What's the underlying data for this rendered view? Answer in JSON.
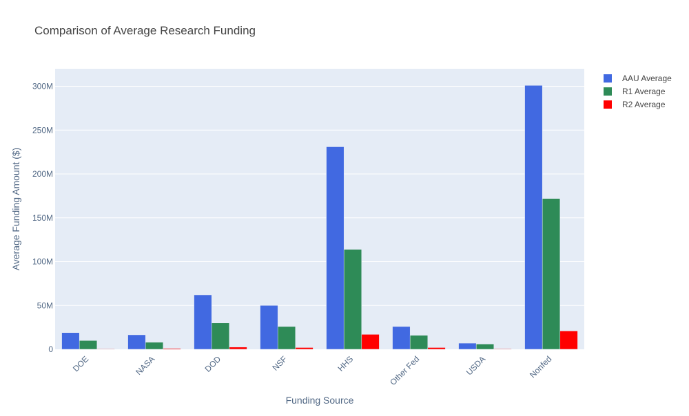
{
  "chart_data": {
    "type": "bar",
    "title": "Comparison of Average Research Funding",
    "xlabel": "Funding Source",
    "ylabel": "Average Funding Amount ($)",
    "categories": [
      "DOE",
      "NASA",
      "DOD",
      "NSF",
      "HHS",
      "Other Fed",
      "USDA",
      "Nonfed"
    ],
    "ylim": [
      0,
      320000000
    ],
    "yticks": [
      0,
      50000000,
      100000000,
      150000000,
      200000000,
      250000000,
      300000000
    ],
    "ytick_labels": [
      "0",
      "50M",
      "100M",
      "150M",
      "200M",
      "250M",
      "300M"
    ],
    "grid": true,
    "legend_position": "top-right",
    "series": [
      {
        "name": "AAU Average",
        "color": "#4169E1",
        "values": [
          19000000,
          16500000,
          62000000,
          50000000,
          231000000,
          26000000,
          7000000,
          301000000
        ]
      },
      {
        "name": "R1 Average",
        "color": "#2E8B57",
        "values": [
          10000000,
          8000000,
          30000000,
          26000000,
          114000000,
          16000000,
          6000000,
          172000000
        ]
      },
      {
        "name": "R2 Average",
        "color": "#FF0000",
        "values": [
          500000,
          1000000,
          2500000,
          2000000,
          17000000,
          2000000,
          600000,
          21000000
        ]
      }
    ]
  }
}
